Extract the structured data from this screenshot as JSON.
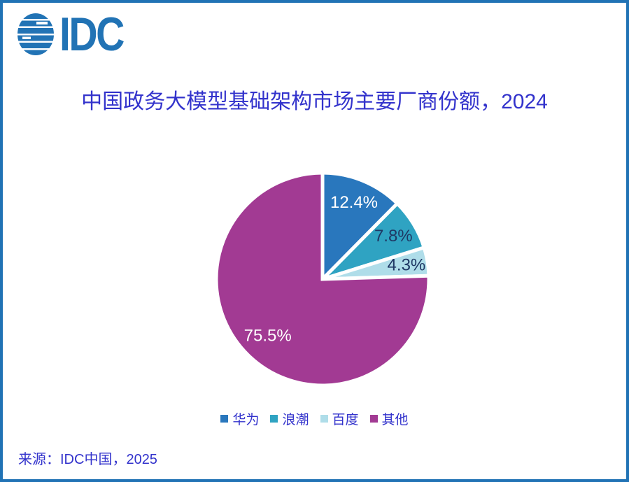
{
  "logo": {
    "text": "IDC",
    "color": "#2173B5"
  },
  "title": "中国政务大模型基础架构市场主要厂商份额，2024",
  "source": "来源：IDC中国，2025",
  "colors": {
    "border": "#2173B5",
    "title_text": "#3333CC",
    "legend_text": "#3333CC",
    "dark_label": "#1F3864",
    "light_label": "#FFFFFF"
  },
  "chart_data": {
    "type": "pie",
    "title": "中国政务大模型基础架构市场主要厂商份额，2024",
    "unit": "%",
    "start_angle_deg": 0,
    "direction": "clockwise",
    "legend_position": "bottom",
    "categories": [
      "华为",
      "浪潮",
      "百度",
      "其他"
    ],
    "values": [
      12.4,
      7.8,
      4.3,
      75.5
    ],
    "slices": [
      {
        "id": "huawei",
        "label": "华为",
        "value": 12.4,
        "display": "12.4%",
        "color": "#2977BD",
        "label_color": "#FFFFFF"
      },
      {
        "id": "inspur",
        "label": "浪潮",
        "value": 7.8,
        "display": "7.8%",
        "color": "#2FA3C2",
        "label_color": "#1F3864"
      },
      {
        "id": "baidu",
        "label": "百度",
        "value": 4.3,
        "display": "4.3%",
        "color": "#AFDDE9",
        "label_color": "#1F3864"
      },
      {
        "id": "others",
        "label": "其他",
        "value": 75.5,
        "display": "75.5%",
        "color": "#A23A93",
        "label_color": "#FFFFFF"
      }
    ]
  }
}
